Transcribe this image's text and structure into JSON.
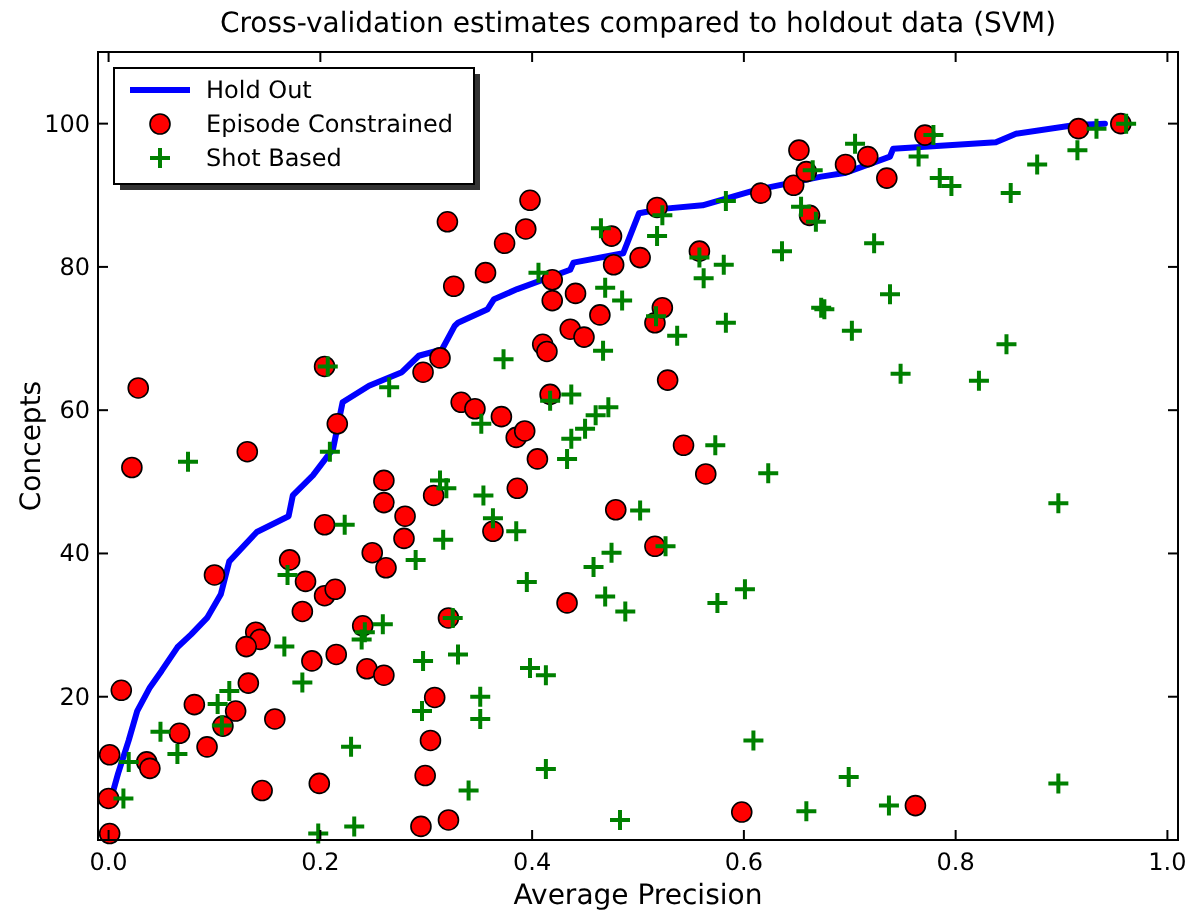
{
  "chart_data": {
    "type": "scatter",
    "title": "Cross-validation estimates compared to holdout data (SVM)",
    "xlabel": "Average Precision",
    "ylabel": "Concepts",
    "xlim": [
      -0.01,
      1.01
    ],
    "ylim": [
      0,
      110
    ],
    "xticks": [
      {
        "value": 0,
        "label": "0.0"
      },
      {
        "value": 0.2,
        "label": "0.2"
      },
      {
        "value": 0.4,
        "label": "0.4"
      },
      {
        "value": 0.6,
        "label": "0.6"
      },
      {
        "value": 0.8,
        "label": "0.8"
      },
      {
        "value": 1,
        "label": "1.0"
      }
    ],
    "yticks": [
      20,
      40,
      60,
      80,
      100
    ],
    "grid": false,
    "legend": "top left",
    "series": [
      {
        "name": "Hold Out",
        "type": "line",
        "color": "#0000ff",
        "marker": "none",
        "line_style": "solid",
        "x": [
          0.002,
          0.009,
          0.019,
          0.027,
          0.039,
          0.05,
          0.065,
          0.078,
          0.093,
          0.106,
          0.114,
          0.14,
          0.17,
          0.174,
          0.193,
          0.212,
          0.221,
          0.246,
          0.277,
          0.293,
          0.315,
          0.327,
          0.33,
          0.358,
          0.364,
          0.386,
          0.436,
          0.439,
          0.486,
          0.501,
          0.523,
          0.561,
          0.61,
          0.673,
          0.695,
          0.738,
          0.741,
          0.838,
          0.857,
          0.913,
          0.941
        ],
        "values": [
          5.6,
          9.3,
          13.9,
          18,
          21.3,
          23.6,
          26.9,
          28.7,
          31,
          34.3,
          38.9,
          43,
          45.2,
          48.1,
          50.9,
          54.6,
          61.1,
          63.4,
          65.3,
          67.6,
          68.5,
          71.8,
          72.2,
          74.1,
          75.5,
          76.9,
          79.6,
          80.6,
          81.9,
          87.5,
          88.1,
          88.6,
          90.7,
          92.6,
          93.1,
          95.4,
          96.5,
          97.4,
          98.6,
          99.8,
          100
        ]
      },
      {
        "name": "Episode Constrained",
        "color": "#ff0000",
        "marker": "circle",
        "x": [
          0.32,
          0.326,
          0.028,
          0.204,
          0.297,
          0.313,
          0.216,
          0.131,
          0.022,
          0.26,
          0.26,
          0.28,
          0.307,
          0.204,
          0.279,
          0.249,
          0.262,
          0.171,
          0.186,
          0.204,
          0.214,
          0.1,
          0.183,
          0.24,
          0.139,
          0.143,
          0.13,
          0.215,
          0.192,
          0.244,
          0.26,
          0.132,
          0.012,
          0.081,
          0.12,
          0.108,
          0.157,
          0.067,
          0.093,
          0.001,
          0.036,
          0.039,
          0.145,
          0.199,
          0,
          0.001,
          0.295,
          0.321,
          0.321,
          0.304,
          0.299,
          0.308,
          0.398,
          0.374,
          0.394,
          0.356,
          0.419,
          0.419,
          0.441,
          0.477,
          0.475,
          0.502,
          0.464,
          0.436,
          0.449,
          0.41,
          0.414,
          0.516,
          0.523,
          0.558,
          0.518,
          0.528,
          0.417,
          0.333,
          0.346,
          0.371,
          0.385,
          0.393,
          0.405,
          0.543,
          0.616,
          0.647,
          0.652,
          0.659,
          0.662,
          0.696,
          0.717,
          0.735,
          0.771,
          0.916,
          0.956,
          0.564,
          0.386,
          0.479,
          0.363,
          0.516,
          0.433,
          0.598,
          0.762
        ],
        "values": [
          86.3,
          77.3,
          63.1,
          66.1,
          65.3,
          67.3,
          58.1,
          54.2,
          52,
          50.2,
          47.1,
          45.2,
          48.1,
          44,
          42.1,
          40.1,
          38,
          39.1,
          36.1,
          34.1,
          35,
          37,
          31.9,
          29.9,
          29,
          28,
          27,
          25.9,
          25,
          23.9,
          23,
          21.9,
          20.9,
          18.9,
          18,
          15.9,
          16.9,
          14.9,
          13,
          11.9,
          10.9,
          10,
          6.9,
          7.9,
          5.8,
          0.9,
          1.9,
          2.8,
          31,
          13.9,
          9,
          19.9,
          89.3,
          83.3,
          85.3,
          79.2,
          78.2,
          75.3,
          76.3,
          80.3,
          84.3,
          81.3,
          73.3,
          71.3,
          70.2,
          69.2,
          68.2,
          72.2,
          74.3,
          82.2,
          88.3,
          64.2,
          62.2,
          61.1,
          60.2,
          59.1,
          56.2,
          57.1,
          53.2,
          55.1,
          90.3,
          91.4,
          96.3,
          93.3,
          87.2,
          94.3,
          95.4,
          92.4,
          98.4,
          99.3,
          100,
          51.1,
          49.1,
          46.1,
          43.1,
          41,
          33.1,
          3.9,
          4.8
        ]
      },
      {
        "name": "Shot Based",
        "color": "#008000",
        "marker": "cross",
        "x": [
          0.207,
          0.265,
          0.209,
          0.075,
          0.313,
          0.319,
          0.223,
          0.316,
          0.29,
          0.169,
          0.259,
          0.242,
          0.239,
          0.166,
          0.297,
          0.114,
          0.183,
          0.103,
          0.296,
          0.107,
          0.049,
          0.065,
          0.019,
          0.229,
          0.014,
          0.198,
          0.232,
          0.325,
          0.465,
          0.523,
          0.518,
          0.583,
          0.406,
          0.469,
          0.485,
          0.558,
          0.562,
          0.581,
          0.636,
          0.654,
          0.668,
          0.665,
          0.517,
          0.537,
          0.467,
          0.583,
          0.373,
          0.673,
          0.417,
          0.437,
          0.352,
          0.472,
          0.46,
          0.45,
          0.437,
          0.433,
          0.573,
          0.705,
          0.779,
          0.765,
          0.785,
          0.796,
          0.852,
          0.877,
          0.915,
          0.933,
          0.961,
          0.723,
          0.738,
          0.676,
          0.702,
          0.748,
          0.822,
          0.848,
          0.623,
          0.354,
          0.363,
          0.385,
          0.502,
          0.475,
          0.458,
          0.395,
          0.526,
          0.601,
          0.575,
          0.469,
          0.488,
          0.33,
          0.398,
          0.413,
          0.351,
          0.351,
          0.609,
          0.413,
          0.34,
          0.483,
          0.659,
          0.897,
          0.699,
          0.737,
          0.897
        ],
        "values": [
          66.1,
          63.2,
          54.2,
          52.8,
          50.2,
          49.1,
          44,
          41.9,
          39.1,
          37,
          30.1,
          29,
          28,
          27,
          25,
          20.8,
          22,
          19,
          18,
          16,
          15.1,
          12,
          10.9,
          13,
          5.8,
          0.9,
          1.9,
          31,
          85.4,
          87.2,
          84.3,
          89.2,
          79.2,
          77.1,
          75.3,
          81.3,
          78.4,
          80.3,
          82.2,
          88.4,
          86.3,
          93.5,
          73.1,
          70.4,
          68.3,
          72.2,
          67.1,
          74.3,
          61.3,
          62.2,
          58.1,
          60.4,
          59.3,
          57.4,
          56,
          53.2,
          55.1,
          97.2,
          98.4,
          95.4,
          92.4,
          91.3,
          90.3,
          94.3,
          96.3,
          99.3,
          100,
          83.3,
          76.2,
          74.1,
          71.1,
          65.1,
          64.1,
          69.2,
          51.2,
          48.1,
          44.9,
          43.1,
          46,
          40.1,
          38.1,
          36,
          41,
          35,
          33.1,
          34,
          31.9,
          25.9,
          24,
          23,
          20,
          16.9,
          13.9,
          9.9,
          6.9,
          2.8,
          4,
          47,
          8.8,
          4.8,
          7.9
        ]
      }
    ]
  }
}
